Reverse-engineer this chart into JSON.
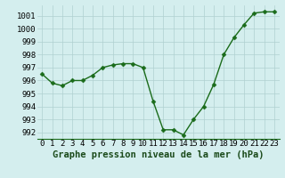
{
  "x": [
    0,
    1,
    2,
    3,
    4,
    5,
    6,
    7,
    8,
    9,
    10,
    11,
    12,
    13,
    14,
    15,
    16,
    17,
    18,
    19,
    20,
    21,
    22,
    23
  ],
  "y": [
    996.5,
    995.8,
    995.6,
    996.0,
    996.0,
    996.4,
    997.0,
    997.2,
    997.3,
    997.3,
    997.0,
    994.4,
    992.2,
    992.2,
    991.8,
    993.0,
    994.0,
    995.7,
    998.0,
    999.3,
    1000.3,
    1001.2,
    1001.3,
    1001.3
  ],
  "line_color": "#1a6b1a",
  "marker_color": "#1a6b1a",
  "bg_color": "#d4eeee",
  "grid_color": "#b0d0d0",
  "xlabel": "Graphe pression niveau de la mer (hPa)",
  "ylim": [
    991.5,
    1001.8
  ],
  "xlim": [
    -0.5,
    23.5
  ],
  "yticks": [
    992,
    993,
    994,
    995,
    996,
    997,
    998,
    999,
    1000,
    1001
  ],
  "xticks": [
    0,
    1,
    2,
    3,
    4,
    5,
    6,
    7,
    8,
    9,
    10,
    11,
    12,
    13,
    14,
    15,
    16,
    17,
    18,
    19,
    20,
    21,
    22,
    23
  ],
  "xtick_labels": [
    "0",
    "1",
    "2",
    "3",
    "4",
    "5",
    "6",
    "7",
    "8",
    "9",
    "10",
    "11",
    "12",
    "13",
    "14",
    "15",
    "16",
    "17",
    "18",
    "19",
    "20",
    "21",
    "22",
    "23"
  ],
  "line_width": 1.0,
  "marker_size": 2.5,
  "xlabel_fontsize": 7.5,
  "tick_fontsize": 6.5
}
